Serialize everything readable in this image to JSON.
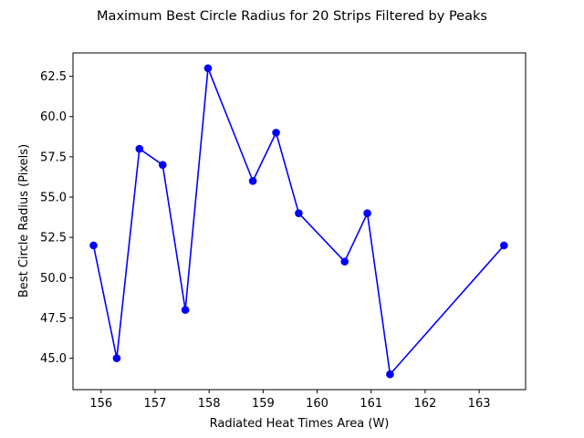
{
  "chart_data": {
    "type": "line",
    "title": "Maximum Best Circle Radius for 20 Strips Filtered by Peaks",
    "xlabel": "Radiated Heat Times Area (W)",
    "ylabel": "Best Circle Radius (Pixels)",
    "xlim": [
      155.48,
      163.86
    ],
    "ylim": [
      43.05,
      63.95
    ],
    "xticks": [
      156,
      157,
      158,
      159,
      160,
      161,
      162,
      163
    ],
    "yticks": [
      45.0,
      47.5,
      50.0,
      52.5,
      55.0,
      57.5,
      60.0,
      62.5
    ],
    "xtick_labels": [
      "156",
      "157",
      "158",
      "159",
      "160",
      "161",
      "162",
      "163"
    ],
    "ytick_labels": [
      "45.0",
      "47.5",
      "50.0",
      "52.5",
      "55.0",
      "57.5",
      "60.0",
      "62.5"
    ],
    "grid": false,
    "series": [
      {
        "color": "#0000ff",
        "marker": "circle",
        "x": [
          155.86,
          156.29,
          156.71,
          157.14,
          157.56,
          157.98,
          158.81,
          159.24,
          159.66,
          160.51,
          160.93,
          161.35,
          163.46
        ],
        "y": [
          52,
          45,
          58,
          57,
          48,
          63,
          56,
          59,
          54,
          51,
          54,
          44,
          52
        ]
      }
    ]
  }
}
